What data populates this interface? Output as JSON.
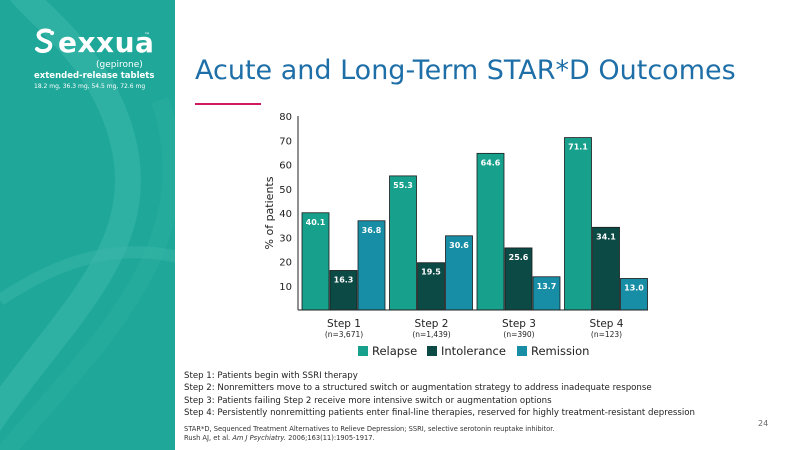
{
  "brand": {
    "name": "exxua",
    "trademark": "™",
    "generic": "(gepirone)",
    "formulation": "extended-release tablets",
    "doses": "18.2 mg, 36.3 mg, 54.5 mg, 72.6 mg"
  },
  "slide": {
    "title": "Acute and Long-Term STAR*D Outcomes",
    "page_number": "24"
  },
  "colors": {
    "sidebar": "#1fa89a",
    "relapse": "#17a08c",
    "intolerance": "#0c4a45",
    "remission": "#178ea6",
    "title": "#1e6fa8",
    "accent_rule": "#d3195f"
  },
  "chart_data": {
    "type": "bar",
    "ylabel": "% of patients",
    "ylim": [
      0,
      80
    ],
    "yticks": [
      10,
      20,
      30,
      40,
      50,
      60,
      70,
      80
    ],
    "categories": [
      "Step 1",
      "Step 2",
      "Step 3",
      "Step 4"
    ],
    "category_sublabels": [
      "(n=3,671)",
      "(n=1,439)",
      "(n=390)",
      "(n=123)"
    ],
    "series": [
      {
        "name": "Relapse",
        "values": [
          40.1,
          55.3,
          64.6,
          71.1
        ],
        "labels": [
          "40.1",
          "55.3",
          "64.6",
          "71.1"
        ]
      },
      {
        "name": "Intolerance",
        "values": [
          16.3,
          19.5,
          25.6,
          34.1
        ],
        "labels": [
          "16.3",
          "19.5",
          "25.6",
          "34.1"
        ]
      },
      {
        "name": "Remission",
        "values": [
          36.8,
          30.6,
          13.7,
          13.0
        ],
        "labels": [
          "36.8",
          "30.6",
          "13.7",
          "13.0"
        ]
      }
    ],
    "legend_position": "bottom",
    "grid": false
  },
  "steps_notes": [
    "Step 1: Patients begin with SSRI therapy",
    "Step 2: Nonremitters move to a structured switch or augmentation strategy to address inadequate response",
    "Step 3: Patients failing Step 2 receive more intensive switch or augmentation options",
    "Step 4: Persistently nonremitting patients enter final-line therapies, reserved for highly treatment-resistant depression"
  ],
  "footnote": {
    "abbreviations": "STAR*D, Sequenced Treatment Alternatives to Relieve Depression; SSRI, selective serotonin reuptake inhibitor.",
    "citation_authors": "Rush AJ, et al.",
    "citation_journal": "Am J Psychiatry.",
    "citation_details": "2006;163(11):1905-1917."
  }
}
